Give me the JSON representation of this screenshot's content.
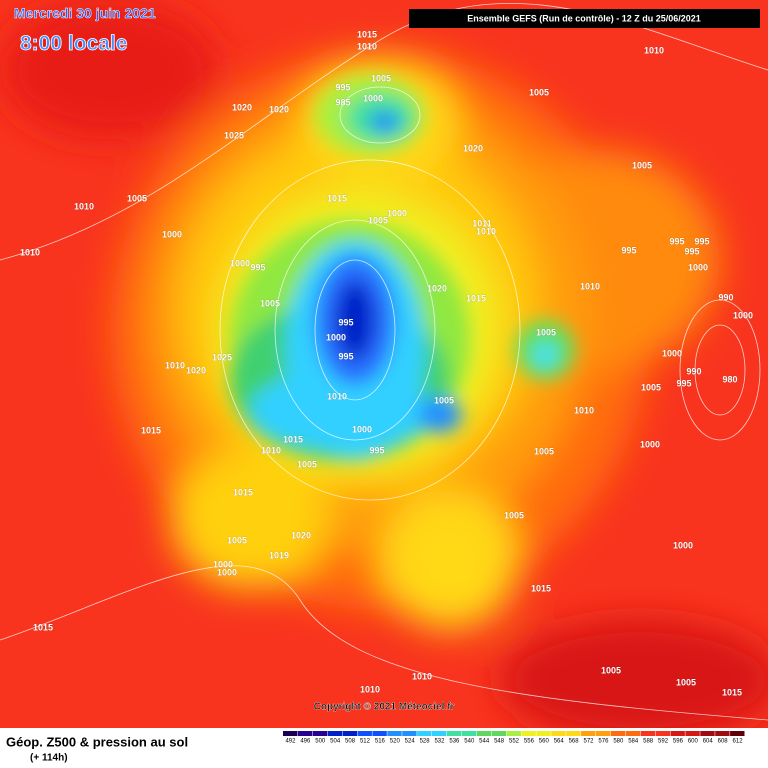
{
  "header": {
    "date": "Mercredi 30 juin 2021",
    "time": "8:00 locale",
    "run": "Ensemble GEFS  (Run de contrôle)  -  12 Z du 25/06/2021"
  },
  "copyright": "Copyright © 2021 Méteociel.fr",
  "footer": {
    "title": "Géop. Z500 & pression au sol",
    "subtitle": "(+ 114h)"
  },
  "scale": {
    "labels": [
      492,
      496,
      500,
      504,
      508,
      512,
      516,
      520,
      524,
      528,
      532,
      536,
      540,
      544,
      548,
      552,
      556,
      560,
      564,
      568,
      572,
      576,
      580,
      584,
      588,
      592,
      596,
      600,
      604,
      608,
      612
    ]
  },
  "isobars": {
    "labels": [
      1015,
      1010,
      1010,
      1005,
      995,
      1000,
      985,
      1005,
      1020,
      1020,
      1025,
      1020,
      1005,
      1010,
      1005,
      1015,
      1005,
      1000,
      1011,
      1010,
      1000,
      995,
      995,
      995,
      995,
      1000,
      1000,
      995,
      1010,
      1020,
      1015,
      1005,
      1010,
      990,
      1000,
      995,
      1005,
      1000,
      995,
      1010,
      1025,
      1020,
      1000,
      1005,
      995,
      990,
      980,
      1010,
      1005,
      1010,
      1015,
      1000,
      1015,
      1010,
      995,
      1000,
      1005,
      1005,
      1015,
      1005,
      1020,
      1005,
      1019,
      1000,
      1000,
      1000,
      1015,
      1015,
      1005,
      1005,
      1015,
      1010,
      1010
    ]
  }
}
